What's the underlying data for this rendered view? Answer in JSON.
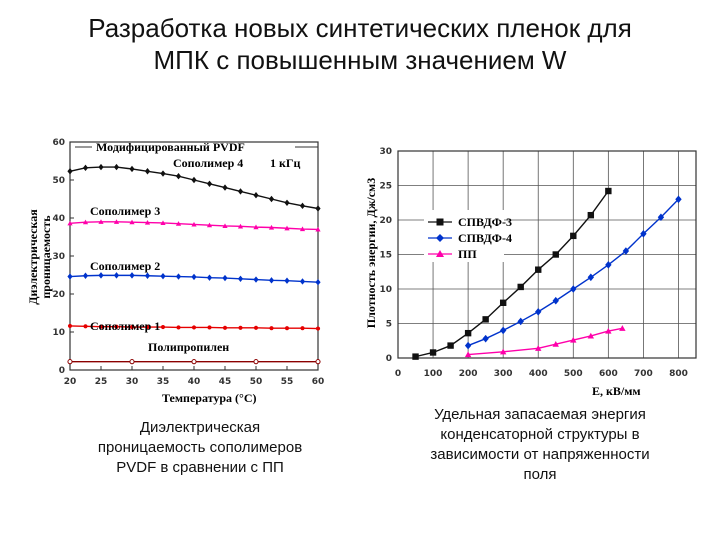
{
  "title": {
    "line1": "Разработка новых синтетических пленок для",
    "line2": "МПК с повышенным значением W"
  },
  "caption_left": {
    "line1": "Диэлектрическая",
    "line2": "проницаемость сополимеров",
    "line3": "PVDF в сравнении с ПП"
  },
  "caption_right": {
    "line1": "Удельная запасаемая энергия",
    "line2": "конденсаторной структуры в",
    "line3": "зависимости от напряженности",
    "line4": "поля"
  },
  "chart_data": [
    {
      "type": "line",
      "title": "",
      "xlabel": "Температура (°C)",
      "ylabel_line1": "Диэлектрическая",
      "ylabel_line2": "проницаемость",
      "xlim": [
        20,
        60
      ],
      "ylim": [
        0,
        60
      ],
      "xticks": [
        "20",
        "25",
        "30",
        "35",
        "40",
        "45",
        "50",
        "55",
        "60"
      ],
      "yticks": [
        "0",
        "10",
        "20",
        "30",
        "40",
        "50",
        "60"
      ],
      "annotations": {
        "pvdf": "Модифицированный PVDF",
        "sopolimer4": "Сополимер 4",
        "khz": "1 кГц",
        "sopolimer3": "Сополимер 3",
        "sopolimer2": "Сополимер 2",
        "sopolimer1": "Сополимер 1",
        "pp": "Полипропилен"
      },
      "series": [
        {
          "color": "#111111",
          "marker": "diamond",
          "x": [
            20,
            22.5,
            25,
            27.5,
            30,
            32.5,
            35,
            37.5,
            40,
            42.5,
            45,
            47.5,
            50,
            52.5,
            55,
            57.5,
            60
          ],
          "y": [
            52.3,
            53.2,
            53.4,
            53.4,
            52.9,
            52.3,
            51.7,
            51.0,
            50.0,
            49.0,
            48.0,
            47.0,
            46.0,
            45.0,
            44.0,
            43.2,
            42.5
          ]
        },
        {
          "color": "#ff00aa",
          "marker": "triangle",
          "x": [
            20,
            22.5,
            25,
            27.5,
            30,
            32.5,
            35,
            37.5,
            40,
            42.5,
            45,
            47.5,
            50,
            52.5,
            55,
            57.5,
            60
          ],
          "y": [
            38.6,
            38.9,
            39.0,
            39.0,
            38.9,
            38.8,
            38.7,
            38.5,
            38.3,
            38.1,
            37.9,
            37.8,
            37.6,
            37.5,
            37.3,
            37.1,
            37.0
          ]
        },
        {
          "color": "#0033cc",
          "marker": "diamond",
          "x": [
            20,
            22.5,
            25,
            27.5,
            30,
            32.5,
            35,
            37.5,
            40,
            42.5,
            45,
            47.5,
            50,
            52.5,
            55,
            57.5,
            60
          ],
          "y": [
            24.6,
            24.8,
            24.9,
            24.9,
            24.9,
            24.8,
            24.7,
            24.6,
            24.5,
            24.3,
            24.2,
            24.0,
            23.8,
            23.6,
            23.5,
            23.3,
            23.1
          ]
        },
        {
          "color": "#e60000",
          "marker": "circle",
          "x": [
            20,
            22.5,
            25,
            27.5,
            30,
            32.5,
            35,
            37.5,
            40,
            42.5,
            45,
            47.5,
            50,
            52.5,
            55,
            57.5,
            60
          ],
          "y": [
            11.6,
            11.5,
            11.4,
            11.4,
            11.3,
            11.3,
            11.3,
            11.2,
            11.2,
            11.2,
            11.1,
            11.1,
            11.1,
            11.0,
            11.0,
            11.0,
            10.9
          ]
        },
        {
          "color": "#8b0000",
          "marker": "open-circle",
          "x": [
            20,
            30,
            40,
            50,
            60
          ],
          "y": [
            2.2,
            2.2,
            2.2,
            2.2,
            2.2
          ]
        }
      ]
    },
    {
      "type": "line",
      "title": "",
      "xlabel": "E, кВ/мм",
      "ylabel": "Плотность энергии, Дж/см3",
      "xlim": [
        0,
        850
      ],
      "ylim": [
        0,
        30
      ],
      "grid": true,
      "legend_placement": "center-left",
      "xticks": [
        "0",
        "100",
        "200",
        "300",
        "400",
        "500",
        "600",
        "700",
        "800"
      ],
      "yticks": [
        "0",
        "5",
        "10",
        "15",
        "20",
        "25",
        "30"
      ],
      "series": [
        {
          "name": "СПВДФ-3",
          "color": "#111111",
          "marker": "square",
          "x": [
            50,
            100,
            150,
            200,
            250,
            300,
            350,
            400,
            450,
            500,
            550,
            600
          ],
          "y": [
            0.2,
            0.8,
            1.8,
            3.6,
            5.6,
            8.0,
            10.3,
            12.8,
            15.0,
            17.7,
            20.7,
            24.2
          ]
        },
        {
          "name": "СПВДФ-4",
          "color": "#0033cc",
          "marker": "diamond",
          "x": [
            200,
            250,
            300,
            350,
            400,
            450,
            500,
            550,
            600,
            650,
            700,
            750,
            800
          ],
          "y": [
            1.8,
            2.8,
            4.0,
            5.3,
            6.7,
            8.3,
            10.0,
            11.7,
            13.5,
            15.5,
            18.0,
            20.4,
            23.0
          ]
        },
        {
          "name": "ПП",
          "color": "#ff00aa",
          "marker": "triangle",
          "x": [
            200,
            300,
            400,
            450,
            500,
            550,
            600,
            640
          ],
          "y": [
            0.5,
            0.9,
            1.4,
            2.0,
            2.6,
            3.2,
            3.9,
            4.3
          ]
        }
      ]
    }
  ]
}
